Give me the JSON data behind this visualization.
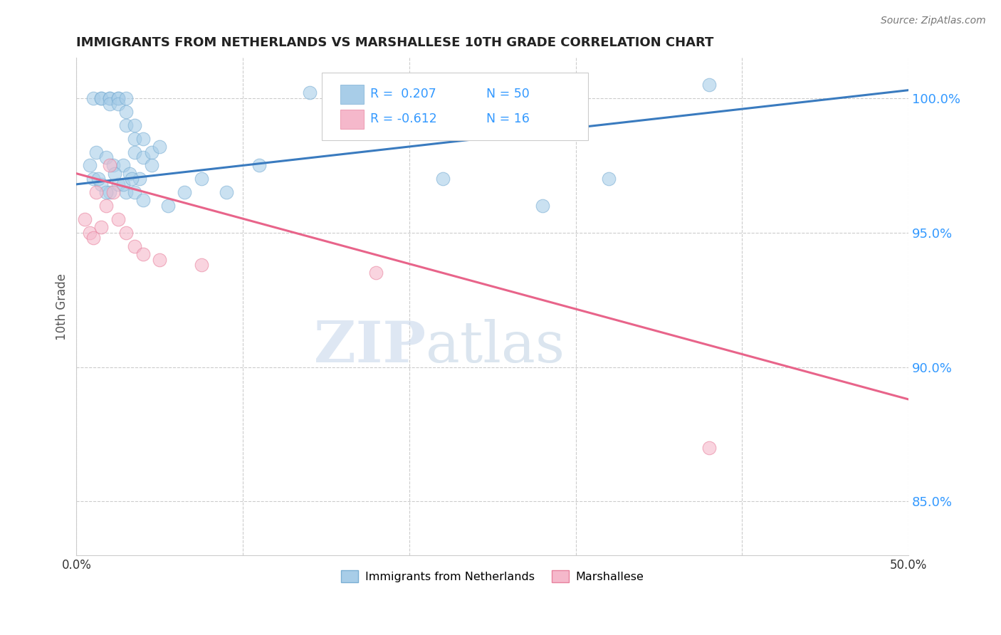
{
  "title": "IMMIGRANTS FROM NETHERLANDS VS MARSHALLESE 10TH GRADE CORRELATION CHART",
  "source": "Source: ZipAtlas.com",
  "ylabel": "10th Grade",
  "xlim": [
    0.0,
    50.0
  ],
  "ylim": [
    83.0,
    101.5
  ],
  "yticks": [
    85.0,
    90.0,
    95.0,
    100.0
  ],
  "ytick_labels": [
    "85.0%",
    "90.0%",
    "95.0%",
    "100.0%"
  ],
  "xticks": [
    0.0,
    10.0,
    20.0,
    30.0,
    40.0,
    50.0
  ],
  "xtick_labels": [
    "0.0%",
    "",
    "",
    "",
    "",
    "50.0%"
  ],
  "blue_R": 0.207,
  "blue_N": 50,
  "pink_R": -0.612,
  "pink_N": 16,
  "blue_color": "#a8cde8",
  "pink_color": "#f5b8cb",
  "blue_edge_color": "#7bafd4",
  "pink_edge_color": "#e8829e",
  "blue_line_color": "#3a7bbf",
  "pink_line_color": "#e8648a",
  "watermark_zip": "ZIP",
  "watermark_atlas": "atlas",
  "legend_labels": [
    "Immigrants from Netherlands",
    "Marshallese"
  ],
  "blue_scatter_x": [
    1.0,
    1.5,
    1.5,
    2.0,
    2.0,
    2.0,
    2.5,
    2.5,
    2.5,
    3.0,
    3.0,
    3.0,
    3.5,
    3.5,
    3.5,
    4.0,
    4.0,
    4.5,
    4.5,
    5.0,
    1.2,
    1.8,
    2.2,
    2.8,
    3.2,
    3.8,
    1.0,
    1.5,
    2.0,
    2.5,
    3.0,
    3.5,
    4.0,
    5.5,
    6.5,
    7.5,
    9.0,
    11.0,
    14.0,
    18.0,
    22.0,
    28.0,
    32.0,
    38.0,
    0.8,
    1.3,
    1.8,
    2.3,
    2.8,
    3.3
  ],
  "blue_scatter_y": [
    100.0,
    100.0,
    100.0,
    100.0,
    100.0,
    99.8,
    100.0,
    100.0,
    99.8,
    100.0,
    99.5,
    99.0,
    99.0,
    98.5,
    98.0,
    98.5,
    97.8,
    98.0,
    97.5,
    98.2,
    98.0,
    97.8,
    97.5,
    97.5,
    97.2,
    97.0,
    97.0,
    96.8,
    96.5,
    96.8,
    96.5,
    96.5,
    96.2,
    96.0,
    96.5,
    97.0,
    96.5,
    97.5,
    100.2,
    100.5,
    97.0,
    96.0,
    97.0,
    100.5,
    97.5,
    97.0,
    96.5,
    97.2,
    96.8,
    97.0
  ],
  "pink_scatter_x": [
    0.5,
    0.8,
    1.0,
    1.2,
    1.5,
    1.8,
    2.0,
    2.2,
    2.5,
    3.0,
    3.5,
    4.0,
    5.0,
    7.5,
    18.0,
    38.0
  ],
  "pink_scatter_y": [
    95.5,
    95.0,
    94.8,
    96.5,
    95.2,
    96.0,
    97.5,
    96.5,
    95.5,
    95.0,
    94.5,
    94.2,
    94.0,
    93.8,
    93.5,
    87.0
  ],
  "blue_trend_x": [
    0.0,
    50.0
  ],
  "blue_trend_y": [
    96.8,
    100.3
  ],
  "pink_trend_x": [
    0.0,
    50.0
  ],
  "pink_trend_y": [
    97.2,
    88.8
  ]
}
